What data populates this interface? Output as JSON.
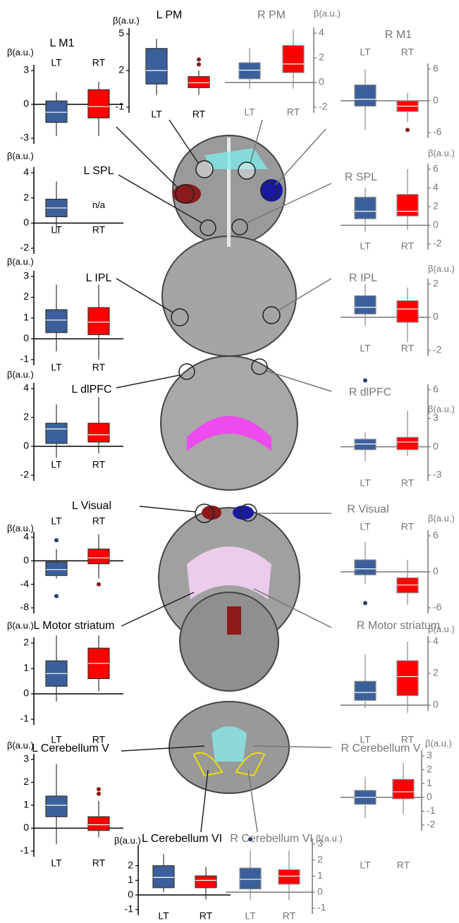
{
  "chart_data": [
    {
      "type": "box",
      "title": "L M1",
      "ylabel": "β(a.u.)",
      "y_axis": "left",
      "ylim": [
        -3,
        3
      ],
      "yticks": [
        -3,
        0,
        3
      ],
      "series": [
        {
          "name": "LT",
          "color": "#3b5f9a",
          "whisker_low": -2.8,
          "q1": -1.6,
          "median": -0.7,
          "q3": 0.3,
          "whisker_high": 1.1,
          "outliers": []
        },
        {
          "name": "RT",
          "color": "#ff0000",
          "whisker_low": -2.8,
          "q1": -1.2,
          "median": -0.2,
          "q3": 1.3,
          "whisker_high": 2,
          "outliers": []
        }
      ]
    },
    {
      "type": "box",
      "title": "L PM",
      "ylabel": "β(a.u.)",
      "y_axis": "left",
      "ylim": [
        -1,
        5
      ],
      "yticks": [
        -1,
        2,
        5
      ],
      "series": [
        {
          "name": "LT",
          "color": "#3b5f9a",
          "whisker_low": 0,
          "q1": 0.9,
          "median": 2,
          "q3": 3.8,
          "whisker_high": 4.6,
          "outliers": []
        },
        {
          "name": "RT",
          "color": "#ff0000",
          "whisker_low": 0,
          "q1": 0.6,
          "median": 1,
          "q3": 1.5,
          "whisker_high": 2,
          "outliers": [
            2.5,
            2.9
          ]
        }
      ]
    },
    {
      "type": "box",
      "title": "R PM",
      "ylabel": "β(a.u.)",
      "y_axis": "right",
      "ylim": [
        -2,
        4
      ],
      "yticks": [
        -2,
        0,
        2,
        4
      ],
      "series": [
        {
          "name": "LT",
          "color": "#3b5f9a",
          "whisker_low": -0.5,
          "q1": 0.3,
          "median": 1,
          "q3": 1.6,
          "whisker_high": 2.8,
          "outliers": []
        },
        {
          "name": "RT",
          "color": "#ff0000",
          "whisker_low": -0.5,
          "q1": 0.8,
          "median": 1.5,
          "q3": 3,
          "whisker_high": 4.3,
          "outliers": []
        }
      ]
    },
    {
      "type": "box",
      "title": "R M1",
      "y_axis": "right",
      "ylim": [
        -6,
        6
      ],
      "yticks": [
        -6,
        0,
        6
      ],
      "series": [
        {
          "name": "LT",
          "color": "#3b5f9a",
          "whisker_low": -5.5,
          "q1": -1,
          "median": 0.3,
          "q3": 3,
          "whisker_high": 6,
          "outliers": []
        },
        {
          "name": "RT",
          "color": "#ff0000",
          "whisker_low": -4,
          "q1": -2,
          "median": -1,
          "q3": 0,
          "whisker_high": 1.5,
          "outliers": [
            -5.5
          ]
        }
      ]
    },
    {
      "type": "box",
      "title": "L SPL",
      "ylabel": "β(a.u.)",
      "y_axis": "left",
      "ylim": [
        -2,
        4
      ],
      "yticks": [
        -2,
        0,
        2,
        4
      ],
      "series": [
        {
          "name": "LT",
          "color": "#3b5f9a",
          "whisker_low": -0.8,
          "q1": 0.5,
          "median": 1.2,
          "q3": 1.9,
          "whisker_high": 3.3,
          "outliers": []
        },
        {
          "name": "RT",
          "label": "n/a"
        }
      ]
    },
    {
      "type": "box",
      "title": "R SPL",
      "ylabel": "β(a.u.)",
      "y_axis": "right",
      "ylim": [
        -2,
        6
      ],
      "yticks": [
        -2,
        0,
        2,
        4,
        6
      ],
      "series": [
        {
          "name": "LT",
          "color": "#3b5f9a",
          "whisker_low": -0.7,
          "q1": 0.7,
          "median": 1.5,
          "q3": 3,
          "whisker_high": 4,
          "outliers": []
        },
        {
          "name": "RT",
          "color": "#ff0000",
          "whisker_low": -0.5,
          "q1": 1,
          "median": 1.5,
          "q3": 3.3,
          "whisker_high": 6,
          "outliers": []
        }
      ]
    },
    {
      "type": "box",
      "title": "L IPL",
      "ylabel": "β(a.u.)",
      "y_axis": "left",
      "ylim": [
        -1,
        3
      ],
      "yticks": [
        -1,
        0,
        1,
        2,
        3
      ],
      "series": [
        {
          "name": "LT",
          "color": "#3b5f9a",
          "whisker_low": -0.6,
          "q1": 0.3,
          "median": 0.9,
          "q3": 1.4,
          "whisker_high": 2.6,
          "outliers": []
        },
        {
          "name": "RT",
          "color": "#ff0000",
          "whisker_low": -1,
          "q1": 0.2,
          "median": 0.8,
          "q3": 1.5,
          "whisker_high": 2.6,
          "outliers": []
        }
      ]
    },
    {
      "type": "box",
      "title": "R IPL",
      "ylabel": "β(a.u.)",
      "y_axis": "right",
      "ylim": [
        -2,
        2
      ],
      "yticks": [
        -2,
        0,
        2
      ],
      "series": [
        {
          "name": "LT",
          "color": "#3b5f9a",
          "whisker_low": -0.5,
          "q1": 0.2,
          "median": 0.6,
          "q3": 1.3,
          "whisker_high": 2,
          "outliers": []
        },
        {
          "name": "RT",
          "color": "#ff0000",
          "whisker_low": -1.5,
          "q1": -0.3,
          "median": 0.5,
          "q3": 1,
          "whisker_high": 1.8,
          "outliers": []
        }
      ]
    },
    {
      "type": "box",
      "title": "L dlPFC",
      "ylabel": "β(a.u.)",
      "y_axis": "left",
      "ylim": [
        -2,
        4
      ],
      "yticks": [
        -2,
        0,
        2,
        4
      ],
      "series": [
        {
          "name": "LT",
          "color": "#3b5f9a",
          "whisker_low": -0.8,
          "q1": 0.2,
          "median": 1.2,
          "q3": 1.6,
          "whisker_high": 2.9,
          "outliers": []
        },
        {
          "name": "RT",
          "color": "#ff0000",
          "whisker_low": -0.5,
          "q1": 0.3,
          "median": 0.8,
          "q3": 1.6,
          "whisker_high": 3.4,
          "outliers": []
        }
      ]
    },
    {
      "type": "box",
      "title": "R dlPFC",
      "ylabel": "β(a.u.)",
      "y_axis": "right",
      "ylim": [
        -3,
        6
      ],
      "yticks": [
        -3,
        0,
        3,
        6
      ],
      "series": [
        {
          "name": "LT",
          "color": "#3b5f9a",
          "whisker_low": -1.5,
          "q1": -0.3,
          "median": 0.3,
          "q3": 0.8,
          "whisker_high": 1.5,
          "outliers": [
            7
          ]
        },
        {
          "name": "RT",
          "color": "#ff0000",
          "whisker_low": -1,
          "q1": -0.3,
          "median": 0.5,
          "q3": 1,
          "whisker_high": 3.8,
          "outliers": []
        }
      ]
    },
    {
      "type": "box",
      "title": "L Visual",
      "ylabel": "β(a.u.)",
      "y_axis": "left",
      "ylim": [
        -8,
        4
      ],
      "yticks": [
        -8,
        -4,
        0,
        4
      ],
      "series": [
        {
          "name": "LT",
          "color": "#3b5f9a",
          "whisker_low": -3,
          "q1": -2.5,
          "median": -1.5,
          "q3": -0.2,
          "whisker_high": 2,
          "outliers": [
            3.5,
            -6
          ]
        },
        {
          "name": "RT",
          "color": "#ff0000",
          "whisker_low": -3,
          "q1": -0.5,
          "median": 0.5,
          "q3": 2,
          "whisker_high": 4.5,
          "outliers": [
            -4
          ]
        }
      ]
    },
    {
      "type": "box",
      "title": "R Visual",
      "ylabel": "β(a.u.)",
      "y_axis": "right",
      "ylim": [
        -6,
        6
      ],
      "yticks": [
        -6,
        0,
        6
      ],
      "series": [
        {
          "name": "LT",
          "color": "#3b5f9a",
          "whisker_low": -2,
          "q1": -0.5,
          "median": 0.5,
          "q3": 2,
          "whisker_high": 5,
          "outliers": [
            -5.2
          ]
        },
        {
          "name": "RT",
          "color": "#ff0000",
          "whisker_low": -5.5,
          "q1": -3.5,
          "median": -2.2,
          "q3": -1,
          "whisker_high": 2,
          "outliers": []
        }
      ]
    },
    {
      "type": "box",
      "title": "L Motor striatum",
      "ylabel": "β(a.u.)",
      "y_axis": "left",
      "ylim": [
        -1,
        2
      ],
      "yticks": [
        -1,
        0,
        1,
        2
      ],
      "series": [
        {
          "name": "LT",
          "color": "#3b5f9a",
          "whisker_low": -0.3,
          "q1": 0.3,
          "median": 0.8,
          "q3": 1.3,
          "whisker_high": 2.3,
          "outliers": []
        },
        {
          "name": "RT",
          "color": "#ff0000",
          "whisker_low": 0.1,
          "q1": 0.6,
          "median": 1.2,
          "q3": 1.8,
          "whisker_high": 2.3,
          "outliers": []
        }
      ]
    },
    {
      "type": "box",
      "title": "R Motor striatum",
      "ylabel": "β(a.u.)",
      "y_axis": "right",
      "ylim": [
        0,
        4
      ],
      "yticks": [
        0,
        2,
        4
      ],
      "series": [
        {
          "name": "LT",
          "color": "#3b5f9a",
          "whisker_low": -0.2,
          "q1": 0.3,
          "median": 0.8,
          "q3": 1.5,
          "whisker_high": 3.2,
          "outliers": []
        },
        {
          "name": "RT",
          "color": "#ff0000",
          "whisker_low": -0.5,
          "q1": 0.6,
          "median": 1.8,
          "q3": 2.8,
          "whisker_high": 4,
          "outliers": []
        }
      ]
    },
    {
      "type": "box",
      "title": "L Cerebellum V",
      "ylabel": "β(a.u.)",
      "y_axis": "left",
      "ylim": [
        -1,
        3
      ],
      "yticks": [
        -1,
        0,
        1,
        2,
        3
      ],
      "series": [
        {
          "name": "LT",
          "color": "#3b5f9a",
          "whisker_low": -0.7,
          "q1": 0.5,
          "median": 1,
          "q3": 1.4,
          "whisker_high": 2.8,
          "outliers": []
        },
        {
          "name": "RT",
          "color": "#ff0000",
          "whisker_low": -0.4,
          "q1": -0.1,
          "median": 0.15,
          "q3": 0.5,
          "whisker_high": 1.2,
          "outliers": [
            1.5,
            1.7
          ]
        }
      ]
    },
    {
      "type": "box",
      "title": "R Cerebellum V",
      "ylabel": "β(a.u.)",
      "y_axis": "right",
      "ylim": [
        -2,
        3
      ],
      "yticks": [
        -2,
        -1,
        0,
        1,
        2,
        3
      ],
      "series": [
        {
          "name": "LT",
          "color": "#3b5f9a",
          "whisker_low": -1.5,
          "q1": -0.5,
          "median": 0,
          "q3": 0.5,
          "whisker_high": 1.5,
          "outliers": []
        },
        {
          "name": "RT",
          "color": "#ff0000",
          "whisker_low": -1.2,
          "q1": -0.1,
          "median": 0.4,
          "q3": 1.3,
          "whisker_high": 2.5,
          "outliers": []
        }
      ]
    },
    {
      "type": "box",
      "title": "L Cerebellum VI",
      "ylabel": "β(a.u.)",
      "y_axis": "left",
      "ylim": [
        -1,
        3
      ],
      "yticks": [
        -1,
        0,
        1,
        2
      ],
      "series": [
        {
          "name": "LT",
          "color": "#3b5f9a",
          "whisker_low": 0.2,
          "q1": 0.5,
          "median": 1.2,
          "q3": 2,
          "whisker_high": 2.8,
          "outliers": []
        },
        {
          "name": "RT",
          "color": "#ff0000",
          "whisker_low": -0.3,
          "q1": 0.5,
          "median": 1,
          "q3": 1.3,
          "whisker_high": 1.9,
          "outliers": []
        }
      ]
    },
    {
      "type": "box",
      "title": "R Cerebellum VI",
      "ylabel": "β(a.u.)",
      "y_axis": "right",
      "ylim": [
        -1,
        3
      ],
      "yticks": [
        -1,
        0,
        1,
        2,
        3
      ],
      "series": [
        {
          "name": "LT",
          "color": "#3b5f9a",
          "whisker_low": -0.5,
          "q1": 0.2,
          "median": 0.8,
          "q3": 1.5,
          "whisker_high": 2.6,
          "outliers": [
            3.3
          ]
        },
        {
          "name": "RT",
          "color": "#ff0000",
          "whisker_low": -0.5,
          "q1": 0.5,
          "median": 1,
          "q3": 1.4,
          "whisker_high": 2.6,
          "outliers": []
        }
      ]
    }
  ]
}
